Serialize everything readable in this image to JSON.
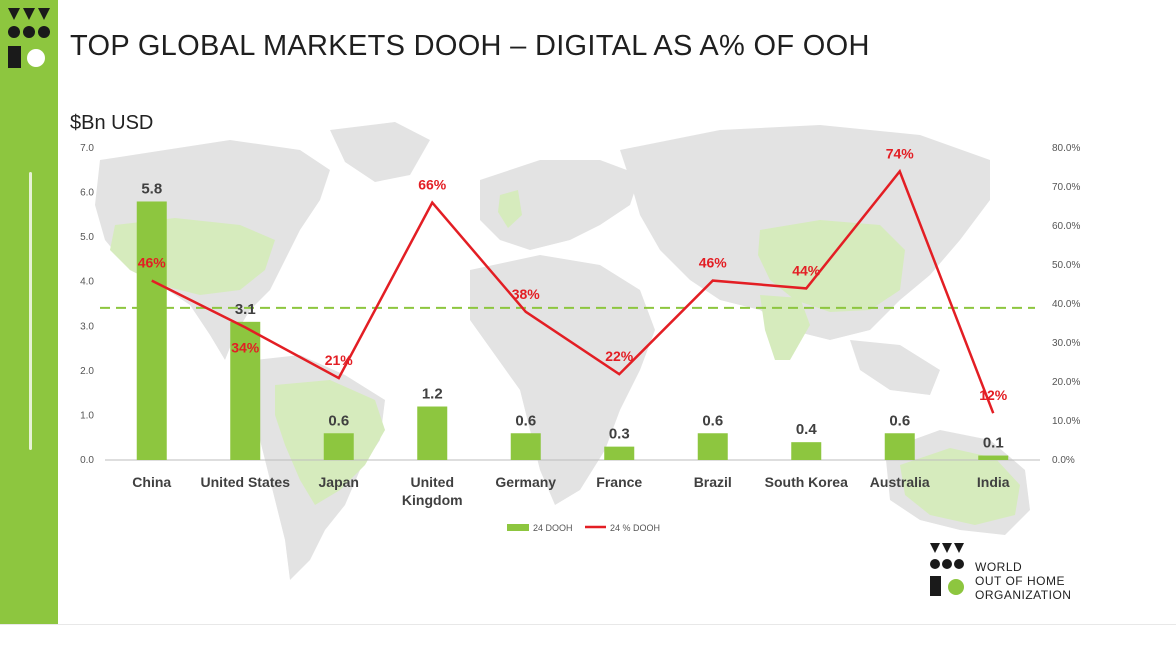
{
  "header": {
    "title": "TOP GLOBAL MARKETS DOOH – DIGITAL AS A% OF OOH",
    "unit": "$Bn USD"
  },
  "brand": {
    "accent_color": "#8dc63f",
    "line_color": "#e31e24",
    "org_name_lines": [
      "WORLD",
      "OUT OF HOME",
      "ORGANIZATION"
    ]
  },
  "chart_data": {
    "type": "bar",
    "categories": [
      "China",
      "United States",
      "Japan",
      "United Kingdom",
      "Germany",
      "France",
      "Brazil",
      "South Korea",
      "Australia",
      "India"
    ],
    "category_lines": [
      [
        "China"
      ],
      [
        "United States"
      ],
      [
        "Japan"
      ],
      [
        "United",
        "Kingdom"
      ],
      [
        "Germany"
      ],
      [
        "France"
      ],
      [
        "Brazil"
      ],
      [
        "South Korea"
      ],
      [
        "Australia"
      ],
      [
        "India"
      ]
    ],
    "series": [
      {
        "name": "24 DOOH",
        "type": "bar",
        "axis": "left",
        "color": "#8dc63f",
        "values": [
          5.8,
          3.1,
          0.6,
          1.2,
          0.6,
          0.3,
          0.6,
          0.4,
          0.6,
          0.1
        ],
        "labels": [
          "5.8",
          "3.1",
          "0.6",
          "1.2",
          "0.6",
          "0.3",
          "0.6",
          "0.4",
          "0.6",
          "0.1"
        ]
      },
      {
        "name": "24 % DOOH",
        "type": "line",
        "axis": "right",
        "color": "#e31e24",
        "values": [
          46,
          34,
          21,
          66,
          38,
          22,
          46,
          44,
          74,
          12
        ],
        "labels": [
          "46%",
          "34%",
          "21%",
          "66%",
          "38%",
          "22%",
          "46%",
          "44%",
          "74%",
          "12%"
        ]
      }
    ],
    "left_axis": {
      "range": [
        0,
        7
      ],
      "ticks": [
        "0.0",
        "1.0",
        "2.0",
        "3.0",
        "4.0",
        "5.0",
        "6.0",
        "7.0"
      ]
    },
    "right_axis": {
      "range": [
        0,
        80
      ],
      "ticks": [
        "0.0%",
        "10.0%",
        "20.0%",
        "30.0%",
        "40.0%",
        "50.0%",
        "60.0%",
        "70.0%",
        "80.0%"
      ]
    },
    "reference_line": {
      "axis": "right",
      "value": 39,
      "style": "dashed",
      "color": "#8dc63f"
    },
    "legend_placement": "bottom-center",
    "background": "world map"
  }
}
